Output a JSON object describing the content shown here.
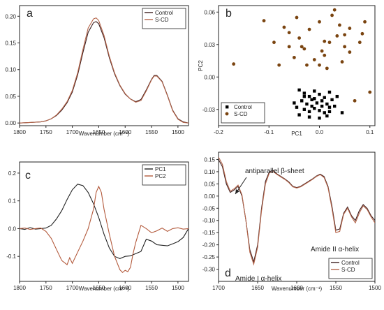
{
  "chart_data": [
    {
      "panel": "a",
      "type": "line",
      "xlabel": "Wavenumber (cm⁻¹)",
      "ylabel": "",
      "xlim": [
        1800,
        1480
      ],
      "ylim": [
        -0.005,
        0.22
      ],
      "xticks": [
        1800,
        1750,
        1700,
        1650,
        1600,
        1550,
        1500
      ],
      "yticks": [
        0.0,
        0.05,
        0.1,
        0.15,
        0.2
      ],
      "ytick_labels": [
        "0.00",
        "0.05",
        "0.10",
        "0.15",
        "0.20"
      ],
      "legend_position": "top-right",
      "series": [
        {
          "name": "Control",
          "color": "#3d1f1f",
          "x": [
            1800,
            1780,
            1760,
            1750,
            1740,
            1730,
            1720,
            1710,
            1700,
            1690,
            1680,
            1670,
            1660,
            1655,
            1650,
            1640,
            1630,
            1620,
            1610,
            1600,
            1590,
            1580,
            1570,
            1560,
            1550,
            1545,
            1540,
            1530,
            1520,
            1510,
            1500,
            1490,
            1480
          ],
          "y": [
            0.0,
            0.001,
            0.002,
            0.004,
            0.008,
            0.014,
            0.024,
            0.038,
            0.058,
            0.09,
            0.132,
            0.17,
            0.188,
            0.19,
            0.186,
            0.16,
            0.122,
            0.092,
            0.07,
            0.054,
            0.045,
            0.04,
            0.044,
            0.062,
            0.082,
            0.089,
            0.089,
            0.078,
            0.052,
            0.024,
            0.008,
            0.002,
            0.0
          ]
        },
        {
          "name": "S-CD",
          "color": "#b5654a",
          "x": [
            1800,
            1780,
            1760,
            1750,
            1740,
            1730,
            1720,
            1710,
            1700,
            1690,
            1680,
            1670,
            1660,
            1655,
            1650,
            1640,
            1630,
            1620,
            1610,
            1600,
            1590,
            1580,
            1570,
            1560,
            1550,
            1545,
            1540,
            1530,
            1520,
            1510,
            1500,
            1490,
            1480
          ],
          "y": [
            0.0,
            0.001,
            0.002,
            0.004,
            0.008,
            0.015,
            0.026,
            0.04,
            0.061,
            0.094,
            0.138,
            0.178,
            0.195,
            0.197,
            0.192,
            0.164,
            0.125,
            0.094,
            0.071,
            0.055,
            0.045,
            0.039,
            0.042,
            0.06,
            0.081,
            0.088,
            0.088,
            0.077,
            0.051,
            0.023,
            0.007,
            0.001,
            0.0
          ]
        }
      ]
    },
    {
      "panel": "b",
      "type": "scatter",
      "xlabel": "PC1",
      "ylabel": "PC2",
      "xlim": [
        -0.2,
        0.11
      ],
      "ylim": [
        -0.045,
        0.066
      ],
      "xticks": [
        -0.2,
        -0.1,
        0.0,
        0.1
      ],
      "xtick_labels": [
        "-0.2",
        "-0.1",
        "0.0",
        "0.1"
      ],
      "yticks": [
        -0.03,
        0.0,
        0.03,
        0.06
      ],
      "ytick_labels": [
        "-0.03",
        "0.00",
        "0.03",
        "0.06"
      ],
      "legend_position": "bottom-left",
      "series": [
        {
          "name": "Control",
          "color": "#000000",
          "marker": "square",
          "points": [
            [
              -0.04,
              -0.012
            ],
            [
              -0.03,
              -0.015
            ],
            [
              -0.02,
              -0.018
            ],
            [
              -0.01,
              -0.013
            ],
            [
              0.0,
              -0.016
            ],
            [
              0.01,
              -0.019
            ],
            [
              0.02,
              -0.014
            ],
            [
              -0.035,
              -0.022
            ],
            [
              -0.025,
              -0.025
            ],
            [
              -0.015,
              -0.021
            ],
            [
              -0.005,
              -0.024
            ],
            [
              0.005,
              -0.022
            ],
            [
              0.015,
              -0.025
            ],
            [
              0.025,
              -0.021
            ],
            [
              -0.045,
              -0.028
            ],
            [
              -0.03,
              -0.03
            ],
            [
              -0.02,
              -0.032
            ],
            [
              -0.01,
              -0.029
            ],
            [
              0.0,
              -0.031
            ],
            [
              0.01,
              -0.033
            ],
            [
              0.02,
              -0.028
            ],
            [
              -0.04,
              -0.035
            ],
            [
              -0.02,
              -0.037
            ],
            [
              0.0,
              -0.038
            ],
            [
              0.015,
              -0.036
            ],
            [
              0.03,
              -0.027
            ],
            [
              -0.01,
              -0.02
            ],
            [
              0.035,
              -0.018
            ],
            [
              -0.05,
              -0.024
            ],
            [
              0.045,
              -0.033
            ],
            [
              -0.015,
              -0.027
            ],
            [
              0.005,
              -0.027
            ],
            [
              -0.03,
              -0.018
            ],
            [
              0.02,
              -0.032
            ]
          ]
        },
        {
          "name": "S-CD",
          "color": "#7a4410",
          "marker": "circle",
          "points": [
            [
              -0.17,
              0.012
            ],
            [
              -0.11,
              0.052
            ],
            [
              -0.09,
              0.032
            ],
            [
              -0.08,
              0.011
            ],
            [
              -0.07,
              0.046
            ],
            [
              -0.06,
              0.028
            ],
            [
              -0.05,
              0.018
            ],
            [
              -0.04,
              0.036
            ],
            [
              -0.03,
              0.026
            ],
            [
              -0.02,
              0.044
            ],
            [
              -0.01,
              0.016
            ],
            [
              0.0,
              0.011
            ],
            [
              0.01,
              0.02
            ],
            [
              0.02,
              0.032
            ],
            [
              0.03,
              0.062
            ],
            [
              0.04,
              0.048
            ],
            [
              0.05,
              0.028
            ],
            [
              0.06,
              0.023
            ],
            [
              0.07,
              -0.022
            ],
            [
              0.08,
              0.032
            ],
            [
              0.09,
              0.051
            ],
            [
              0.1,
              -0.014
            ],
            [
              0.05,
              0.039
            ],
            [
              0.0,
              0.051
            ],
            [
              -0.035,
              0.028
            ],
            [
              0.015,
              0.008
            ],
            [
              0.06,
              0.045
            ],
            [
              -0.06,
              0.041
            ],
            [
              0.035,
              0.038
            ],
            [
              0.005,
              0.024
            ],
            [
              -0.025,
              0.011
            ],
            [
              0.045,
              0.014
            ],
            [
              0.085,
              0.04
            ],
            [
              0.025,
              0.057
            ],
            [
              -0.045,
              0.055
            ],
            [
              0.01,
              0.033
            ]
          ]
        }
      ]
    },
    {
      "panel": "c",
      "type": "line",
      "xlabel": "Wavenumber (cm⁻¹)",
      "ylabel": "",
      "xlim": [
        1800,
        1480
      ],
      "ylim": [
        -0.19,
        0.24
      ],
      "xticks": [
        1800,
        1750,
        1700,
        1650,
        1600,
        1550,
        1500
      ],
      "yticks": [
        -0.1,
        0.0,
        0.1,
        0.2
      ],
      "ytick_labels": [
        "-0.1",
        "0.0",
        "0.1",
        "0.2"
      ],
      "legend_position": "top-right",
      "series": [
        {
          "name": "PC1",
          "color": "#222222",
          "x": [
            1800,
            1790,
            1780,
            1770,
            1760,
            1750,
            1740,
            1730,
            1720,
            1710,
            1700,
            1690,
            1680,
            1670,
            1660,
            1650,
            1640,
            1630,
            1620,
            1610,
            1600,
            1590,
            1580,
            1570,
            1560,
            1550,
            1540,
            1530,
            1520,
            1510,
            1500,
            1490,
            1480
          ],
          "y": [
            0.0,
            -0.003,
            0.004,
            -0.002,
            0.0,
            0.002,
            0.012,
            0.035,
            0.065,
            0.105,
            0.14,
            0.16,
            0.155,
            0.13,
            0.09,
            0.04,
            -0.02,
            -0.07,
            -0.1,
            -0.108,
            -0.1,
            -0.098,
            -0.09,
            -0.082,
            -0.038,
            -0.045,
            -0.058,
            -0.06,
            -0.062,
            -0.055,
            -0.047,
            -0.032,
            0.0
          ]
        },
        {
          "name": "PC2",
          "color": "#b35a3c",
          "x": [
            1800,
            1790,
            1780,
            1770,
            1760,
            1750,
            1740,
            1730,
            1720,
            1710,
            1705,
            1700,
            1690,
            1680,
            1670,
            1660,
            1655,
            1650,
            1645,
            1640,
            1630,
            1620,
            1610,
            1605,
            1600,
            1595,
            1590,
            1585,
            1580,
            1570,
            1560,
            1550,
            1540,
            1530,
            1520,
            1510,
            1500,
            1490,
            1480
          ],
          "y": [
            0.0,
            0.002,
            -0.003,
            0.0,
            0.002,
            -0.01,
            -0.035,
            -0.075,
            -0.115,
            -0.13,
            -0.105,
            -0.125,
            -0.085,
            -0.045,
            0.0,
            0.07,
            0.13,
            0.152,
            0.13,
            0.07,
            -0.02,
            -0.1,
            -0.148,
            -0.158,
            -0.15,
            -0.155,
            -0.14,
            -0.09,
            -0.05,
            0.012,
            0.0,
            -0.015,
            -0.008,
            0.002,
            -0.01,
            0.0,
            0.003,
            -0.002,
            0.0
          ]
        }
      ]
    },
    {
      "panel": "d",
      "type": "line",
      "xlabel": "Wavenumber (cm⁻¹)",
      "ylabel": "",
      "xlim": [
        1700,
        1500
      ],
      "ylim": [
        -0.35,
        0.18
      ],
      "xticks": [
        1700,
        1650,
        1600,
        1550,
        1500
      ],
      "yticks": [
        -0.3,
        -0.25,
        -0.2,
        -0.15,
        -0.1,
        -0.05,
        0.0,
        0.05,
        0.1,
        0.15
      ],
      "ytick_labels": [
        "-0.30",
        "-0.25",
        "-0.20",
        "-0.15",
        "-0.10",
        "-0.05",
        "0.00",
        "0.05",
        "0.10",
        "0.15"
      ],
      "legend_position": "bottom-right",
      "annotations": [
        "antiparallel β-sheet",
        "Amide II α-helix",
        "Amide I α-helix"
      ],
      "series": [
        {
          "name": "Control",
          "color": "#3d1f1f",
          "x": [
            1700,
            1695,
            1690,
            1685,
            1680,
            1675,
            1670,
            1665,
            1660,
            1655,
            1650,
            1645,
            1640,
            1635,
            1630,
            1625,
            1620,
            1615,
            1610,
            1605,
            1600,
            1595,
            1590,
            1585,
            1580,
            1575,
            1570,
            1565,
            1560,
            1555,
            1550,
            1545,
            1540,
            1535,
            1530,
            1525,
            1520,
            1515,
            1510,
            1505,
            1500
          ],
          "y": [
            0.15,
            0.12,
            0.05,
            0.015,
            0.025,
            0.04,
            0.0,
            -0.1,
            -0.22,
            -0.27,
            -0.2,
            -0.05,
            0.06,
            0.1,
            0.105,
            0.09,
            0.08,
            0.07,
            0.058,
            0.04,
            0.035,
            0.04,
            0.05,
            0.06,
            0.07,
            0.082,
            0.09,
            0.08,
            0.04,
            -0.04,
            -0.14,
            -0.135,
            -0.07,
            -0.045,
            -0.08,
            -0.1,
            -0.06,
            -0.035,
            -0.05,
            -0.08,
            -0.1
          ]
        },
        {
          "name": "S-CD",
          "color": "#b5654a",
          "x": [
            1700,
            1695,
            1690,
            1685,
            1680,
            1675,
            1670,
            1665,
            1660,
            1655,
            1650,
            1645,
            1640,
            1635,
            1630,
            1625,
            1620,
            1615,
            1610,
            1605,
            1600,
            1595,
            1590,
            1585,
            1580,
            1575,
            1570,
            1565,
            1560,
            1555,
            1550,
            1545,
            1540,
            1535,
            1530,
            1525,
            1520,
            1515,
            1510,
            1505,
            1500
          ],
          "y": [
            0.16,
            0.13,
            0.06,
            0.02,
            0.03,
            0.045,
            0.005,
            -0.1,
            -0.23,
            -0.28,
            -0.21,
            -0.06,
            0.05,
            0.095,
            0.1,
            0.088,
            0.078,
            0.068,
            0.055,
            0.038,
            0.033,
            0.038,
            0.048,
            0.058,
            0.068,
            0.08,
            0.088,
            0.076,
            0.035,
            -0.05,
            -0.15,
            -0.145,
            -0.075,
            -0.05,
            -0.085,
            -0.11,
            -0.07,
            -0.04,
            -0.055,
            -0.085,
            -0.11
          ]
        }
      ]
    }
  ]
}
